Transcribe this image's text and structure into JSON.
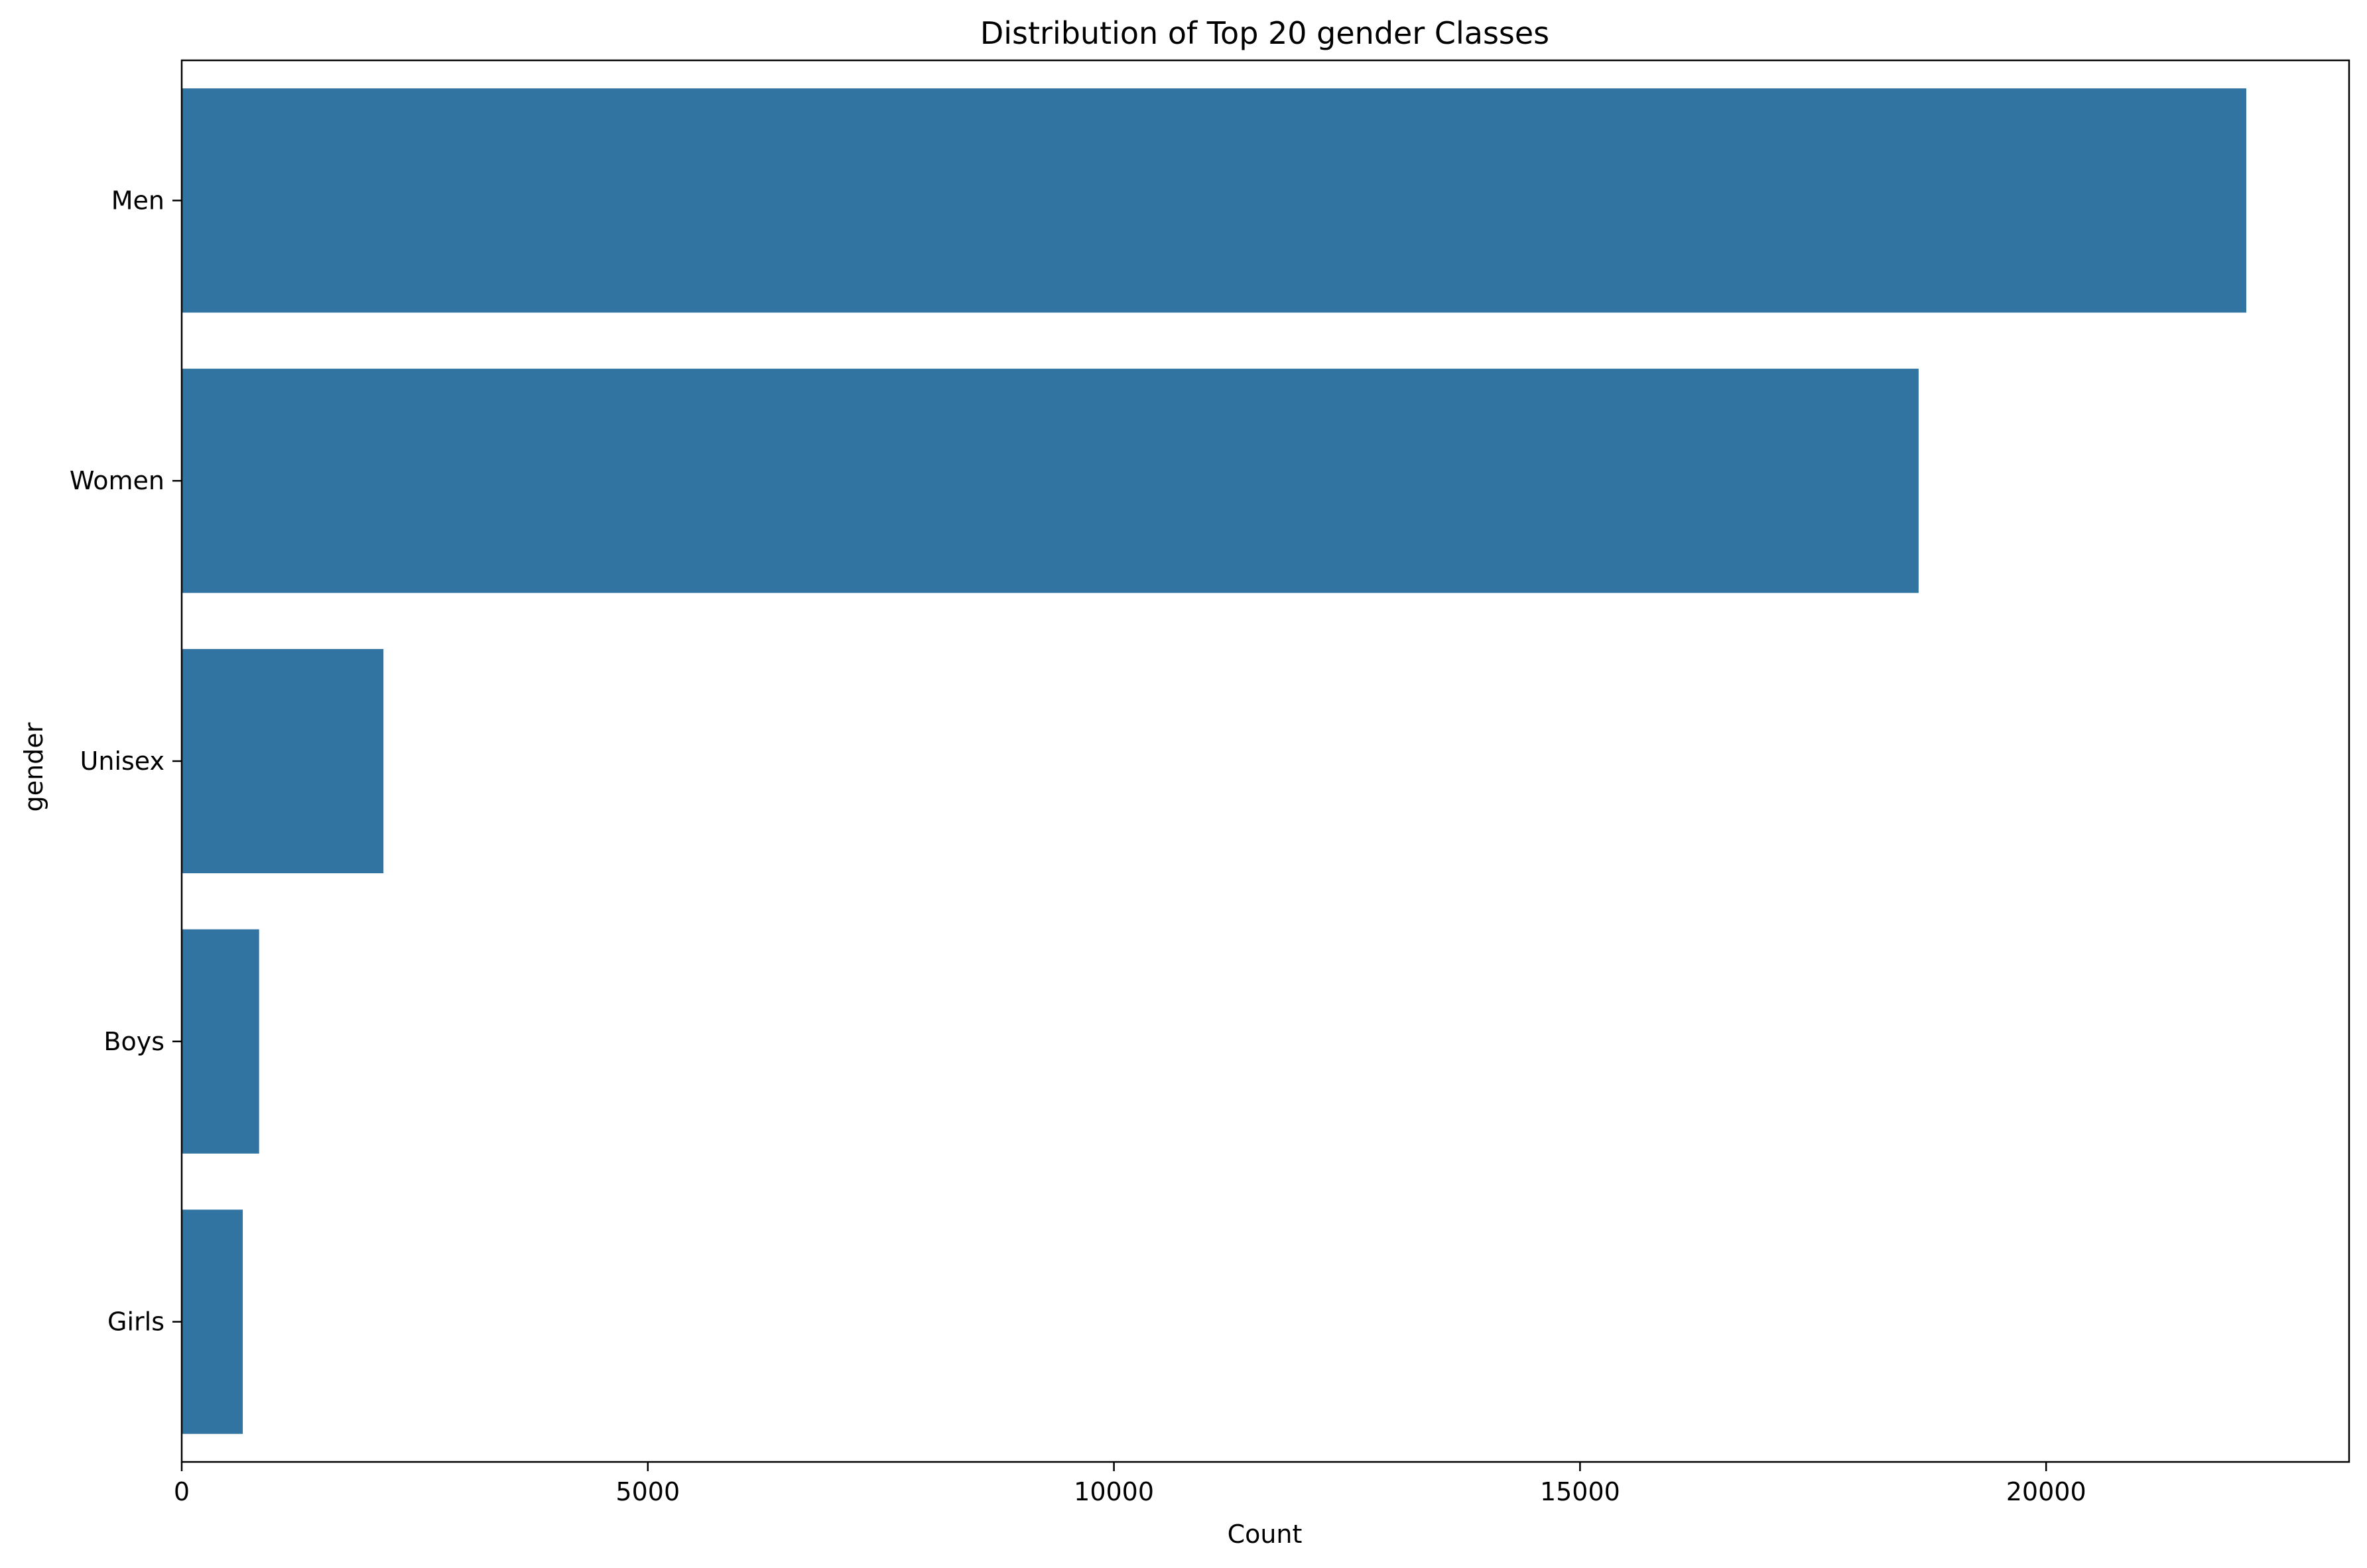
{
  "chart_data": {
    "type": "bar",
    "orientation": "horizontal",
    "title": "Distribution of Top 20 gender Classes",
    "xlabel": "Count",
    "ylabel": "gender",
    "categories": [
      "Men",
      "Women",
      "Unisex",
      "Boys",
      "Girls"
    ],
    "values": [
      22147,
      18632,
      2164,
      830,
      655
    ],
    "xlim": [
      0,
      23250
    ],
    "xticks": [
      0,
      5000,
      10000,
      15000,
      20000
    ],
    "xtick_labels": [
      "0",
      "5000",
      "10000",
      "15000",
      "20000"
    ],
    "grid": false,
    "legend": "none",
    "bar_color": "#3274a1"
  }
}
